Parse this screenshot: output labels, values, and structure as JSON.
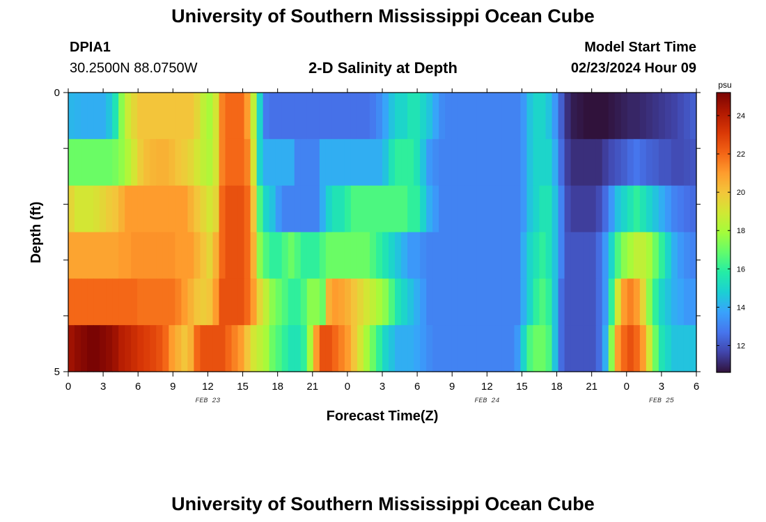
{
  "header": {
    "title": "University of Southern Mississippi Ocean Cube",
    "station_id": "DPIA1",
    "station_coords": "30.2500N  88.0750W",
    "plot_title": "2-D Salinity at Depth",
    "model_start_label": "Model Start Time",
    "model_start_value": "02/23/2024 Hour 09"
  },
  "footer": {
    "title": "University of Southern Mississippi Ocean Cube"
  },
  "chart_data": {
    "type": "heatmap",
    "title": "2-D Salinity at Depth",
    "xlabel": "Forecast Time(Z)",
    "ylabel": "Depth (ft)",
    "x_tick_labels": [
      "0",
      "3",
      "6",
      "9",
      "12",
      "15",
      "18",
      "21",
      "0",
      "3",
      "6",
      "9",
      "12",
      "15",
      "18",
      "21",
      "0",
      "3",
      "6"
    ],
    "x_date_labels": [
      {
        "label": "FEB 23",
        "tick_index": 4
      },
      {
        "label": "FEB 24",
        "tick_index": 12
      },
      {
        "label": "FEB 25",
        "tick_index": 17
      }
    ],
    "y_tick_labels": [
      "0",
      "5"
    ],
    "ylim": [
      0,
      5
    ],
    "rows": 6,
    "row_hours": 54,
    "colorbar": {
      "unit": "psu",
      "min": 10.6,
      "max": 25.2,
      "tick_values": [
        12,
        14,
        16,
        18,
        20,
        22,
        24
      ],
      "colors": [
        "#30123b",
        "#4145ab",
        "#4675ed",
        "#39a2fc",
        "#1bcfd4",
        "#24eca6",
        "#61fc6c",
        "#a4fc3b",
        "#d1e834",
        "#f3c63a",
        "#fe9b2d",
        "#f36315",
        "#d93806",
        "#b11901",
        "#7a0403"
      ]
    },
    "salinity_psu": [
      [
        14.2,
        14.1,
        14.0,
        14.0,
        14.0,
        14.0,
        14.5,
        15.5,
        17.5,
        18.8,
        19.5,
        20.0,
        20.0,
        20.0,
        20.0,
        20.0,
        20.0,
        20.0,
        20.0,
        20.0,
        19.5,
        18.5,
        18.0,
        19.0,
        21.5,
        22.0,
        22.0,
        22.0,
        21.0,
        18.5,
        15.0,
        12.8,
        12.6,
        12.6,
        12.6,
        12.6,
        12.6,
        12.6,
        12.6,
        12.6,
        12.6,
        12.6,
        12.6,
        12.6,
        12.6,
        12.6,
        12.6,
        12.6,
        12.8,
        13.2,
        13.8,
        14.5,
        15.0,
        15.0,
        15.5,
        15.5,
        15.0,
        14.5,
        13.8,
        13.2,
        13.0,
        13.0,
        13.0,
        13.0,
        13.0,
        13.0,
        13.0,
        13.0,
        13.0,
        13.0,
        13.0,
        13.0,
        13.5,
        14.5,
        15.0,
        15.0,
        14.5,
        13.5,
        12.2,
        11.2,
        10.8,
        10.7,
        10.6,
        10.6,
        10.6,
        10.6,
        10.7,
        10.8,
        10.9,
        11.0,
        11.0,
        11.1,
        11.2,
        11.3,
        11.4,
        11.5,
        11.6,
        11.8,
        12.0,
        12.2
      ],
      [
        17.0,
        17.0,
        17.0,
        17.0,
        17.0,
        17.0,
        17.0,
        17.2,
        17.6,
        18.2,
        19.0,
        19.8,
        20.2,
        20.4,
        20.5,
        20.5,
        20.3,
        20.0,
        19.8,
        19.5,
        19.0,
        18.5,
        18.2,
        19.0,
        21.5,
        22.0,
        22.0,
        22.0,
        21.5,
        19.0,
        15.0,
        14.0,
        14.0,
        14.0,
        14.0,
        14.0,
        13.0,
        13.0,
        13.0,
        13.0,
        14.0,
        14.0,
        14.0,
        14.0,
        14.0,
        14.0,
        14.0,
        14.0,
        14.0,
        14.0,
        14.5,
        15.5,
        16.0,
        16.0,
        16.0,
        15.5,
        14.5,
        13.5,
        13.2,
        13.0,
        13.0,
        13.0,
        13.0,
        13.0,
        13.0,
        13.0,
        13.0,
        13.0,
        13.0,
        13.0,
        13.0,
        13.0,
        13.5,
        14.5,
        15.0,
        15.0,
        15.0,
        14.0,
        12.5,
        11.5,
        11.2,
        11.2,
        11.2,
        11.2,
        11.2,
        11.5,
        11.8,
        12.0,
        12.2,
        12.5,
        12.7,
        12.5,
        12.3,
        12.2,
        12.0,
        12.0,
        11.8,
        11.8,
        11.9,
        12.0
      ],
      [
        19.5,
        19.0,
        19.0,
        19.0,
        19.2,
        19.5,
        19.8,
        20.0,
        20.5,
        21.0,
        21.0,
        21.0,
        21.0,
        21.0,
        21.0,
        21.0,
        21.0,
        21.0,
        21.0,
        20.5,
        20.0,
        19.5,
        19.0,
        19.5,
        22.0,
        22.5,
        22.5,
        22.5,
        22.0,
        20.0,
        16.5,
        15.0,
        14.5,
        13.5,
        13.0,
        13.0,
        13.0,
        13.0,
        13.0,
        13.0,
        14.0,
        15.0,
        15.5,
        15.5,
        16.0,
        16.5,
        16.5,
        16.5,
        16.5,
        16.5,
        16.5,
        16.5,
        16.5,
        16.5,
        16.0,
        16.0,
        15.0,
        14.0,
        13.5,
        13.0,
        13.0,
        13.0,
        13.0,
        13.0,
        13.0,
        13.0,
        13.0,
        13.0,
        13.0,
        13.0,
        13.0,
        13.0,
        13.5,
        14.5,
        15.0,
        15.5,
        15.5,
        14.5,
        13.0,
        11.8,
        11.5,
        11.5,
        11.5,
        11.5,
        11.8,
        12.5,
        13.5,
        14.5,
        15.0,
        15.5,
        16.0,
        15.5,
        15.0,
        14.5,
        14.0,
        13.5,
        13.0,
        12.8,
        12.6,
        12.5
      ],
      [
        20.8,
        20.8,
        20.8,
        20.8,
        20.8,
        20.8,
        20.8,
        20.8,
        21.0,
        21.0,
        21.2,
        21.2,
        21.2,
        21.2,
        21.2,
        21.2,
        21.2,
        21.0,
        21.0,
        21.0,
        20.5,
        20.0,
        19.5,
        20.5,
        22.0,
        22.5,
        22.5,
        22.5,
        22.0,
        20.5,
        17.5,
        16.5,
        16.0,
        16.0,
        16.5,
        17.0,
        16.5,
        16.0,
        16.0,
        16.0,
        16.5,
        17.0,
        17.0,
        17.0,
        17.0,
        17.0,
        17.0,
        17.0,
        16.5,
        16.0,
        15.5,
        15.0,
        14.5,
        14.0,
        13.5,
        13.5,
        13.2,
        13.0,
        13.0,
        13.0,
        13.0,
        13.0,
        13.0,
        13.0,
        13.0,
        13.0,
        13.0,
        13.0,
        13.0,
        13.0,
        13.0,
        13.0,
        14.0,
        15.0,
        15.5,
        16.0,
        15.5,
        14.5,
        13.0,
        12.0,
        12.0,
        12.0,
        12.0,
        12.0,
        12.5,
        13.5,
        15.0,
        16.5,
        17.5,
        18.0,
        18.5,
        18.5,
        18.0,
        17.0,
        16.0,
        15.0,
        14.0,
        13.5,
        13.2,
        13.0
      ],
      [
        22.0,
        22.0,
        22.0,
        22.0,
        22.0,
        22.0,
        22.0,
        22.0,
        22.0,
        22.0,
        22.0,
        21.8,
        21.8,
        21.8,
        21.8,
        21.8,
        21.8,
        21.5,
        21.0,
        20.5,
        20.0,
        19.8,
        20.0,
        21.0,
        22.5,
        22.5,
        22.5,
        22.5,
        22.0,
        21.0,
        19.5,
        18.5,
        17.5,
        17.0,
        16.5,
        16.0,
        16.0,
        16.5,
        17.5,
        17.5,
        17.0,
        20.5,
        21.0,
        20.8,
        20.5,
        20.0,
        19.5,
        19.0,
        18.5,
        18.0,
        17.5,
        16.5,
        15.5,
        15.0,
        14.5,
        14.0,
        13.5,
        13.0,
        13.0,
        13.0,
        13.0,
        13.0,
        13.0,
        13.0,
        13.0,
        13.0,
        13.0,
        13.0,
        13.0,
        13.0,
        13.0,
        13.0,
        14.0,
        15.0,
        16.0,
        16.5,
        16.0,
        14.5,
        12.5,
        12.0,
        12.0,
        12.0,
        12.0,
        12.0,
        12.5,
        13.5,
        16.0,
        19.0,
        21.0,
        21.5,
        21.0,
        19.5,
        17.5,
        16.0,
        15.0,
        14.5,
        14.0,
        13.8,
        13.5,
        13.5
      ],
      [
        24.5,
        24.8,
        25.0,
        25.2,
        25.2,
        25.0,
        24.8,
        24.5,
        24.0,
        23.8,
        23.5,
        23.2,
        23.0,
        22.8,
        22.5,
        22.0,
        21.0,
        20.5,
        20.0,
        20.5,
        22.0,
        22.5,
        22.5,
        22.5,
        22.5,
        22.0,
        21.5,
        21.0,
        20.0,
        19.0,
        18.5,
        18.0,
        17.0,
        16.5,
        16.0,
        15.5,
        15.5,
        16.0,
        18.0,
        21.0,
        22.5,
        22.5,
        22.0,
        21.5,
        21.0,
        20.0,
        19.0,
        18.0,
        17.0,
        16.0,
        15.0,
        14.5,
        14.0,
        14.0,
        14.0,
        13.8,
        13.5,
        13.2,
        13.0,
        13.0,
        13.0,
        13.0,
        13.0,
        13.0,
        13.0,
        13.0,
        13.0,
        13.0,
        13.0,
        13.0,
        13.0,
        13.5,
        15.0,
        16.5,
        17.0,
        17.0,
        16.5,
        14.5,
        12.5,
        12.0,
        12.0,
        12.0,
        12.0,
        12.0,
        12.5,
        14.0,
        17.5,
        21.0,
        22.0,
        22.5,
        22.0,
        21.0,
        19.0,
        17.0,
        15.5,
        15.0,
        14.5,
        14.5,
        14.5,
        14.5
      ]
    ]
  }
}
